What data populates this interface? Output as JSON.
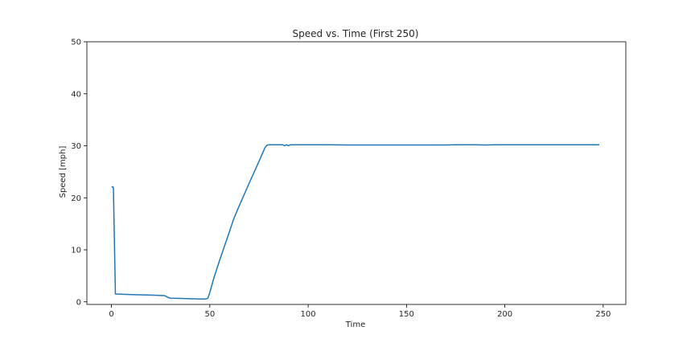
{
  "chart_data": {
    "type": "line",
    "title": "Speed vs. Time (First 250)",
    "xlabel": "Time",
    "ylabel": "Speed [mph]",
    "xlim": [
      -12.5,
      261.5
    ],
    "ylim": [
      -0.5,
      50
    ],
    "xticks": [
      0,
      50,
      100,
      150,
      200,
      250
    ],
    "yticks": [
      0,
      10,
      20,
      30,
      40,
      50
    ],
    "grid": false,
    "series": [
      {
        "color": "#1f77b4",
        "x": [
          0,
          0.8,
          1,
          2,
          10,
          20,
          27,
          28,
          29,
          30,
          35,
          40,
          45,
          48,
          49,
          50,
          52,
          55,
          58,
          60,
          62,
          65,
          70,
          75,
          78,
          79,
          80,
          85,
          87,
          88,
          89,
          90,
          91,
          95,
          100,
          110,
          120,
          130,
          140,
          150,
          160,
          170,
          175,
          180,
          185,
          190,
          195,
          200,
          210,
          220,
          230,
          240,
          248
        ],
        "y": [
          22.1,
          22.1,
          21.8,
          1.5,
          1.4,
          1.3,
          1.2,
          1.0,
          0.8,
          0.7,
          0.65,
          0.6,
          0.55,
          0.55,
          0.7,
          1.8,
          4.5,
          8.0,
          11.3,
          13.5,
          15.8,
          18.5,
          22.8,
          27.0,
          29.6,
          30.1,
          30.2,
          30.2,
          30.2,
          30.0,
          30.2,
          30.0,
          30.2,
          30.2,
          30.2,
          30.2,
          30.15,
          30.15,
          30.15,
          30.15,
          30.15,
          30.15,
          30.2,
          30.2,
          30.2,
          30.15,
          30.2,
          30.2,
          30.2,
          30.2,
          30.2,
          30.2,
          30.2
        ]
      }
    ]
  }
}
